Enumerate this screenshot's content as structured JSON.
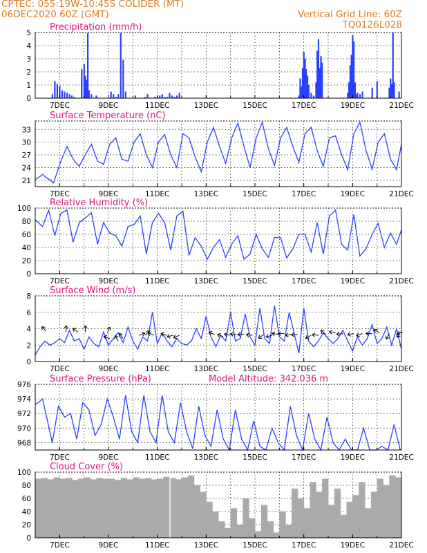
{
  "header": {
    "line1_left": "CPTEC:   055:19W-10:45S   COLIDER (MT)",
    "line2_left": "06DEC2020 60Z (GMT)",
    "line2_right": "Vertical Grid Line: 60Z",
    "line3_right": "TQ0126L028"
  },
  "colors": {
    "header": "#e07a20",
    "title": "#e0117f",
    "series": "#2840ff",
    "cloud": "#aaaaaa"
  },
  "x_axis_ticks": [
    "7DEC",
    "9DEC",
    "11DEC",
    "13DEC",
    "15DEC",
    "17DEC",
    "19DEC",
    "21DEC"
  ],
  "chart_data": [
    {
      "id": "precip",
      "type": "bar",
      "title": "Precipitation (mm/h)",
      "ylim": [
        0,
        5
      ],
      "yticks": [
        "0",
        "1",
        "2",
        "3",
        "4",
        "5"
      ],
      "x": [
        6.7,
        6.8,
        6.9,
        7.0,
        7.1,
        7.2,
        7.3,
        7.4,
        7.5,
        7.6,
        7.9,
        8.0,
        8.05,
        8.1,
        8.15,
        8.2,
        8.3,
        8.5,
        9.1,
        9.2,
        9.3,
        9.4,
        9.5,
        9.6,
        9.7,
        10.1,
        10.5,
        10.6,
        10.9,
        11.0,
        11.1,
        11.2,
        11.3,
        11.4,
        11.5,
        11.6,
        11.7,
        11.8,
        11.9,
        16.8,
        16.85,
        16.9,
        16.95,
        17.0,
        17.05,
        17.1,
        17.15,
        17.2,
        17.3,
        17.4,
        17.5,
        17.55,
        17.6,
        17.65,
        17.7,
        17.75,
        18.8,
        18.85,
        18.9,
        18.95,
        19.0,
        19.05,
        19.1,
        19.15,
        19.2,
        19.3,
        19.4,
        19.8,
        20.0,
        20.5,
        20.55,
        20.6,
        20.65,
        20.7,
        20.9
      ],
      "values": [
        0.3,
        1.3,
        1.1,
        0.9,
        0.6,
        0.5,
        0.4,
        0.3,
        0.2,
        0.1,
        2.2,
        2.6,
        1.7,
        1.4,
        5.0,
        0.6,
        0.3,
        0.2,
        0.5,
        0.3,
        0.1,
        0.3,
        5.0,
        2.9,
        0.5,
        0.2,
        0.1,
        0.3,
        0.1,
        0.1,
        0.2,
        0.3,
        0.1,
        0.1,
        0.4,
        0.2,
        0.1,
        0.2,
        0.4,
        0.2,
        1.5,
        0.9,
        2.3,
        3.5,
        3.0,
        2.2,
        1.7,
        1.0,
        0.4,
        0.2,
        1.2,
        3.6,
        4.5,
        2.3,
        3.2,
        2.7,
        0.4,
        1.2,
        2.5,
        3.3,
        4.8,
        4.3,
        1.2,
        0.3,
        0.4,
        0.3,
        0.5,
        0.8,
        1.3,
        0.8,
        1.5,
        1.1,
        5.0,
        1.2,
        0.5
      ]
    },
    {
      "id": "temp",
      "type": "line",
      "title": "Surface Temperature (nC)",
      "ylim": [
        19.5,
        35
      ],
      "yticks": [
        "21",
        "24",
        "27",
        "30",
        "33"
      ],
      "x": [
        6.0,
        6.15,
        6.3,
        6.45,
        6.6,
        6.75,
        7.05,
        7.3,
        7.55,
        7.8,
        8.05,
        8.3,
        8.55,
        8.8,
        9.05,
        9.3,
        9.55,
        9.8,
        10.05,
        10.3,
        10.55,
        10.8,
        11.05,
        11.3,
        11.55,
        11.8,
        12.05,
        12.3,
        12.55,
        12.8,
        13.05,
        13.3,
        13.55,
        13.8,
        14.05,
        14.3,
        14.55,
        14.8,
        15.05,
        15.3,
        15.55,
        15.8,
        16.05,
        16.3,
        16.55,
        16.8,
        17.05,
        17.3,
        17.55,
        17.8,
        18.05,
        18.3,
        18.55,
        18.8,
        19.05,
        19.3,
        19.55,
        19.8,
        20.05,
        20.3,
        20.55,
        20.8,
        21.0
      ],
      "values": [
        21.2,
        21.7,
        22.4,
        21.6,
        21.1,
        20.4,
        25.5,
        29,
        26,
        24.3,
        27,
        29.5,
        25.5,
        24.8,
        29.5,
        31,
        26,
        25.5,
        30,
        32,
        27,
        24,
        30,
        31.8,
        27,
        24,
        32,
        31,
        26.5,
        23,
        30,
        33.5,
        29,
        25,
        31,
        34.5,
        29,
        24,
        31,
        34.7,
        28.5,
        24.5,
        31,
        33.5,
        29,
        25.2,
        32,
        33.5,
        28,
        24.3,
        31,
        31.5,
        27,
        23.5,
        32,
        34.7,
        28,
        23.6,
        30,
        32,
        26,
        23.5,
        29.5
      ]
    },
    {
      "id": "rh",
      "type": "line",
      "title": "Relative Humidity (%)",
      "ylim": [
        0,
        100
      ],
      "yticks": [
        "0",
        "20",
        "40",
        "60",
        "80",
        "100"
      ],
      "x": [
        6.0,
        6.3,
        6.55,
        6.8,
        7.05,
        7.3,
        7.55,
        7.8,
        8.05,
        8.3,
        8.55,
        8.8,
        9.05,
        9.3,
        9.55,
        9.8,
        10.05,
        10.3,
        10.55,
        10.8,
        11.05,
        11.3,
        11.55,
        11.8,
        12.05,
        12.3,
        12.55,
        12.8,
        13.05,
        13.3,
        13.55,
        13.8,
        14.05,
        14.3,
        14.55,
        14.8,
        15.05,
        15.3,
        15.55,
        15.8,
        16.05,
        16.3,
        16.55,
        16.8,
        17.05,
        17.3,
        17.55,
        17.8,
        18.05,
        18.3,
        18.55,
        18.8,
        19.05,
        19.3,
        19.55,
        19.8,
        20.05,
        20.3,
        20.55,
        20.8,
        21.0
      ],
      "values": [
        82,
        72,
        97,
        58,
        92,
        97,
        48,
        78,
        85,
        93,
        45,
        78,
        62,
        58,
        42,
        72,
        75,
        88,
        30,
        78,
        92,
        78,
        36,
        88,
        95,
        28,
        55,
        42,
        22,
        40,
        52,
        25,
        45,
        58,
        22,
        30,
        60,
        38,
        25,
        55,
        55,
        24,
        38,
        60,
        60,
        33,
        78,
        30,
        88,
        97,
        45,
        36,
        90,
        27,
        38,
        60,
        77,
        40,
        62,
        45,
        67
      ]
    },
    {
      "id": "wind",
      "type": "line",
      "title": "Surface Wind (m/s)",
      "ylim": [
        0,
        8
      ],
      "yticks": [
        "0",
        "2",
        "4",
        "6",
        "8"
      ],
      "x": [
        6.0,
        6.2,
        6.4,
        6.6,
        6.8,
        7.0,
        7.2,
        7.4,
        7.6,
        7.8,
        8.0,
        8.2,
        8.4,
        8.6,
        8.8,
        9.0,
        9.2,
        9.4,
        9.6,
        9.8,
        10.0,
        10.2,
        10.4,
        10.6,
        10.8,
        11.0,
        11.2,
        11.4,
        11.6,
        11.8,
        12.0,
        12.2,
        12.4,
        12.6,
        12.8,
        13.0,
        13.2,
        13.4,
        13.6,
        13.8,
        14.0,
        14.2,
        14.4,
        14.6,
        14.8,
        15.0,
        15.2,
        15.4,
        15.6,
        15.8,
        16.0,
        16.2,
        16.4,
        16.6,
        16.8,
        17.0,
        17.2,
        17.4,
        17.6,
        17.8,
        18.0,
        18.2,
        18.4,
        18.6,
        18.8,
        19.0,
        19.2,
        19.4,
        19.6,
        19.8,
        20.0,
        20.2,
        20.4,
        20.6,
        20.8,
        21.0
      ],
      "values": [
        0.8,
        1.8,
        2.5,
        2.0,
        2.3,
        2.8,
        2.3,
        3.8,
        2.5,
        2.8,
        1.5,
        3.0,
        2.2,
        1.8,
        3.6,
        2.0,
        2.8,
        3.5,
        2.3,
        4.2,
        2.5,
        1.5,
        3.0,
        2.5,
        6.0,
        2.2,
        3.5,
        2.5,
        1.8,
        2.8,
        2.2,
        2.0,
        2.5,
        4.0,
        2.8,
        5.5,
        3.0,
        1.8,
        3.2,
        2.5,
        6.0,
        2.5,
        2.8,
        5.8,
        3.0,
        2.0,
        6.5,
        2.8,
        2.2,
        6.8,
        3.0,
        2.5,
        6.0,
        3.5,
        1.0,
        6.5,
        2.5,
        1.8,
        2.5,
        3.5,
        2.8,
        2.2,
        2.8,
        3.8,
        2.5,
        1.3,
        3.0,
        2.0,
        2.8,
        4.5,
        2.2,
        2.8,
        4.2,
        2.0,
        4.0,
        1.5
      ],
      "arrows": [
        [
          6.45,
          3.7,
          45
        ],
        [
          7.25,
          3.6,
          95
        ],
        [
          7.75,
          3.6,
          35
        ],
        [
          8.05,
          3.6,
          90
        ],
        [
          8.95,
          3.5,
          115
        ],
        [
          9.05,
          2.8,
          20
        ],
        [
          9.4,
          2.5,
          60
        ],
        [
          9.6,
          2.8,
          55
        ],
        [
          10.25,
          3.2,
          160
        ],
        [
          10.5,
          3.2,
          135
        ],
        [
          10.85,
          3.2,
          25
        ],
        [
          11.4,
          3.2,
          15
        ],
        [
          11.65,
          3.2,
          -15
        ],
        [
          11.9,
          3.2,
          -25
        ],
        [
          13.35,
          3.3,
          20
        ],
        [
          13.7,
          3.0,
          25
        ],
        [
          14.0,
          3.2,
          10
        ],
        [
          14.25,
          3.3,
          5
        ],
        [
          14.55,
          3.3,
          0
        ],
        [
          14.9,
          3.2,
          5
        ],
        [
          15.35,
          3.3,
          -40
        ],
        [
          15.7,
          3.2,
          -15
        ],
        [
          15.95,
          3.3,
          10
        ],
        [
          16.2,
          3.4,
          0
        ],
        [
          16.5,
          3.3,
          -10
        ],
        [
          16.75,
          3.3,
          -5
        ],
        [
          17.3,
          3.2,
          -30
        ],
        [
          17.6,
          3.2,
          5
        ],
        [
          17.9,
          3.3,
          40
        ],
        [
          18.3,
          3.5,
          10
        ],
        [
          18.6,
          3.4,
          -5
        ],
        [
          19.05,
          3.4,
          -10
        ],
        [
          19.4,
          3.4,
          -20
        ],
        [
          19.8,
          3.4,
          0
        ],
        [
          20.1,
          3.5,
          30
        ],
        [
          20.5,
          3.4,
          -60
        ],
        [
          20.95,
          3.6,
          -60
        ],
        [
          21.05,
          3.6,
          -20
        ]
      ]
    },
    {
      "id": "pressure",
      "type": "line",
      "title": "Surface Pressure (hPa)",
      "annotation": "Model Altitude: 342.036 m",
      "ylim": [
        967,
        976
      ],
      "yticks": [
        "968",
        "970",
        "972",
        "974",
        "976"
      ],
      "x": [
        6.0,
        6.3,
        6.5,
        6.7,
        6.95,
        7.2,
        7.45,
        7.7,
        7.95,
        8.2,
        8.45,
        8.7,
        8.95,
        9.2,
        9.45,
        9.7,
        9.95,
        10.2,
        10.45,
        10.7,
        10.95,
        11.2,
        11.45,
        11.7,
        11.95,
        12.2,
        12.45,
        12.7,
        12.95,
        13.2,
        13.45,
        13.7,
        13.95,
        14.2,
        14.45,
        14.7,
        14.95,
        15.2,
        15.45,
        15.7,
        15.95,
        16.2,
        16.45,
        16.7,
        16.95,
        17.2,
        17.45,
        17.7,
        17.95,
        18.2,
        18.45,
        18.7,
        18.95,
        19.2,
        19.45,
        19.7,
        19.95,
        20.2,
        20.45,
        20.7,
        20.95
      ],
      "values": [
        973.2,
        974.0,
        971.0,
        968.0,
        973.0,
        971.5,
        972.0,
        968.5,
        973.5,
        972.5,
        969.0,
        970.5,
        974.0,
        971.5,
        968.5,
        974.5,
        969.5,
        968.0,
        974.5,
        969.5,
        968.0,
        974.5,
        969.5,
        968.0,
        973.5,
        969.5,
        967.2,
        973.0,
        969.0,
        967.5,
        972.5,
        968.5,
        966.5,
        972.5,
        968.5,
        966.5,
        971.0,
        967.5,
        966.5,
        970.0,
        968.0,
        966.0,
        973.0,
        969.0,
        966.5,
        972.0,
        968.5,
        966.0,
        971.5,
        968.0,
        966.0,
        968.5,
        966.5,
        967.0,
        970.0,
        967.0,
        966.0,
        967.5,
        966.0,
        970.5,
        966.5
      ]
    },
    {
      "id": "cloud",
      "type": "bar",
      "title": "Cloud Cover (%)",
      "ylim": [
        0,
        100
      ],
      "yticks": [
        "0",
        "20",
        "40",
        "60",
        "80",
        "100"
      ],
      "x": [
        6.0,
        6.25,
        6.5,
        6.75,
        7.0,
        7.25,
        7.5,
        7.75,
        8.0,
        8.25,
        8.5,
        8.75,
        9.0,
        9.25,
        9.5,
        9.75,
        10.0,
        10.25,
        10.5,
        10.75,
        11.0,
        11.25,
        11.5,
        11.75,
        12.0,
        12.25,
        12.5,
        12.75,
        13.0,
        13.25,
        13.5,
        13.75,
        14.0,
        14.25,
        14.5,
        14.75,
        15.0,
        15.25,
        15.5,
        15.75,
        16.0,
        16.25,
        16.5,
        16.75,
        17.0,
        17.25,
        17.5,
        17.75,
        18.0,
        18.25,
        18.5,
        18.75,
        19.0,
        19.25,
        19.5,
        19.75,
        20.0,
        20.25,
        20.5,
        20.75
      ],
      "values": [
        90,
        91,
        89,
        92,
        90,
        91,
        88,
        90,
        92,
        89,
        91,
        90,
        90,
        88,
        91,
        89,
        92,
        90,
        91,
        89,
        90,
        93,
        91,
        89,
        92,
        95,
        80,
        70,
        55,
        40,
        25,
        15,
        45,
        20,
        60,
        30,
        10,
        50,
        25,
        8,
        40,
        20,
        75,
        60,
        45,
        85,
        70,
        90,
        50,
        75,
        35,
        55,
        65,
        85,
        45,
        70,
        90,
        80,
        95,
        92
      ]
    }
  ]
}
